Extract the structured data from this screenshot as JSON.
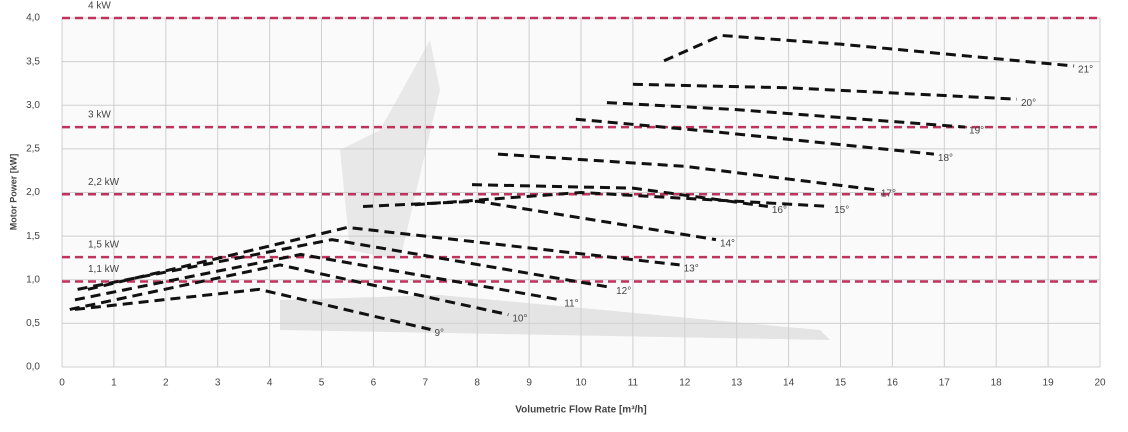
{
  "chart_data": {
    "type": "line",
    "y_label": "Motor Power [kW]",
    "x_label": "Volumetric Flow Rate [m³/h]",
    "xlim": [
      0,
      20
    ],
    "xticks": [
      0,
      1,
      2,
      3,
      4,
      5,
      6,
      7,
      8,
      9,
      10,
      11,
      12,
      13,
      14,
      15,
      16,
      17,
      18,
      19,
      20
    ],
    "ylim": [
      0,
      4
    ],
    "yticks": [
      {
        "value": 0,
        "label": "0,0"
      },
      {
        "value": 0.5,
        "label": "0,5"
      },
      {
        "value": 1,
        "label": "1,0"
      },
      {
        "value": 1.5,
        "label": "1,5"
      },
      {
        "value": 2,
        "label": "2,0"
      },
      {
        "value": 2.5,
        "label": "2,5"
      },
      {
        "value": 3,
        "label": "3,0"
      },
      {
        "value": 3.5,
        "label": "3,5"
      },
      {
        "value": 4,
        "label": "4,0"
      }
    ],
    "grid": true,
    "reference_color": "#c0335a",
    "reference_lines": [
      {
        "label": "4 kW",
        "value": 4.0
      },
      {
        "label": "3 kW",
        "value": 2.75
      },
      {
        "label": "2,2 kW",
        "value": 1.98
      },
      {
        "label": "1,5 kW",
        "value": 1.26
      },
      {
        "label": "1,1 kW",
        "value": 0.98
      }
    ],
    "series": [
      {
        "name": "21°",
        "color": "#111111",
        "x": [
          11.6,
          12.7,
          15,
          19.5
        ],
        "values": [
          3.51,
          3.8,
          3.7,
          3.45
        ]
      },
      {
        "name": "20°",
        "color": "#111111",
        "x": [
          11.0,
          14,
          18.4
        ],
        "values": [
          3.24,
          3.2,
          3.07
        ]
      },
      {
        "name": "19°",
        "color": "#111111",
        "x": [
          10.5,
          13,
          17.4
        ],
        "values": [
          3.03,
          2.95,
          2.75
        ]
      },
      {
        "name": "18°",
        "color": "#111111",
        "x": [
          9.9,
          12.5,
          16.8
        ],
        "values": [
          2.84,
          2.7,
          2.44
        ]
      },
      {
        "name": "17°",
        "color": "#111111",
        "x": [
          8.4,
          12,
          15.7
        ],
        "values": [
          2.44,
          2.3,
          2.03
        ]
      },
      {
        "name": "16°",
        "color": "#111111",
        "x": [
          7.9,
          11,
          13.6
        ],
        "values": [
          2.09,
          2.05,
          1.84
        ]
      },
      {
        "name": "15°",
        "color": "#111111",
        "x": [
          6.8,
          10,
          14.8
        ],
        "values": [
          1.86,
          2.0,
          1.84
        ]
      },
      {
        "name": "14°",
        "color": "#111111",
        "x": [
          5.8,
          8,
          12.6
        ],
        "values": [
          1.84,
          1.9,
          1.46
        ]
      },
      {
        "name": "13°",
        "color": "#111111",
        "x": [
          0.5,
          5.5,
          11.9
        ],
        "values": [
          0.89,
          1.6,
          1.17
        ]
      },
      {
        "name": "12°",
        "color": "#111111",
        "x": [
          0.3,
          5.2,
          10.6
        ],
        "values": [
          0.89,
          1.46,
          0.91
        ]
      },
      {
        "name": "11°",
        "color": "#111111",
        "x": [
          0.25,
          4.6,
          9.6
        ],
        "values": [
          0.77,
          1.29,
          0.77
        ]
      },
      {
        "name": "10°",
        "color": "#111111",
        "x": [
          0.15,
          4.2,
          8.6
        ],
        "values": [
          0.66,
          1.17,
          0.6
        ]
      },
      {
        "name": "9°",
        "color": "#111111",
        "x": [
          0.25,
          3.8,
          7.1
        ],
        "values": [
          0.66,
          0.89,
          0.43
        ]
      }
    ]
  }
}
